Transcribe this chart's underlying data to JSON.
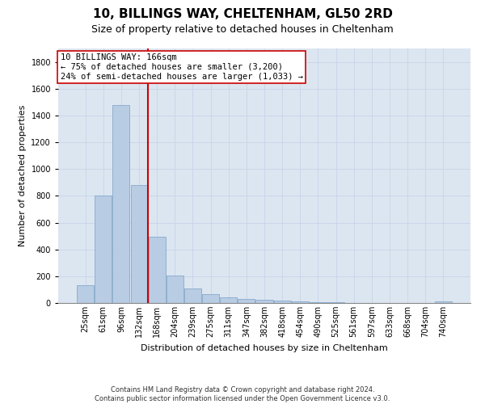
{
  "title": "10, BILLINGS WAY, CHELTENHAM, GL50 2RD",
  "subtitle": "Size of property relative to detached houses in Cheltenham",
  "xlabel": "Distribution of detached houses by size in Cheltenham",
  "ylabel": "Number of detached properties",
  "footer_line1": "Contains HM Land Registry data © Crown copyright and database right 2024.",
  "footer_line2": "Contains public sector information licensed under the Open Government Licence v3.0.",
  "categories": [
    "25sqm",
    "61sqm",
    "96sqm",
    "132sqm",
    "168sqm",
    "204sqm",
    "239sqm",
    "275sqm",
    "311sqm",
    "347sqm",
    "382sqm",
    "418sqm",
    "454sqm",
    "490sqm",
    "525sqm",
    "561sqm",
    "597sqm",
    "633sqm",
    "668sqm",
    "704sqm",
    "740sqm"
  ],
  "values": [
    130,
    800,
    1480,
    880,
    495,
    205,
    110,
    65,
    40,
    28,
    22,
    20,
    15,
    8,
    5,
    3,
    3,
    2,
    1,
    1,
    10
  ],
  "bar_color": "#b8cce4",
  "bar_edge_color": "#7aa0c4",
  "property_line_index": 4,
  "property_line_color": "#cc0000",
  "annotation_text_line1": "10 BILLINGS WAY: 166sqm",
  "annotation_text_line2": "← 75% of detached houses are smaller (3,200)",
  "annotation_text_line3": "24% of semi-detached houses are larger (1,033) →",
  "annotation_box_color": "#ffffff",
  "annotation_box_edge_color": "#cc0000",
  "ylim": [
    0,
    1900
  ],
  "yticks": [
    0,
    200,
    400,
    600,
    800,
    1000,
    1200,
    1400,
    1600,
    1800
  ],
  "grid_color": "#c8d4e8",
  "axes_bg_color": "#dce6f1",
  "fig_bg_color": "#ffffff",
  "title_fontsize": 11,
  "subtitle_fontsize": 9,
  "axis_label_fontsize": 8,
  "tick_fontsize": 7,
  "annotation_fontsize": 7.5,
  "ylabel_fontsize": 8,
  "footer_fontsize": 6
}
